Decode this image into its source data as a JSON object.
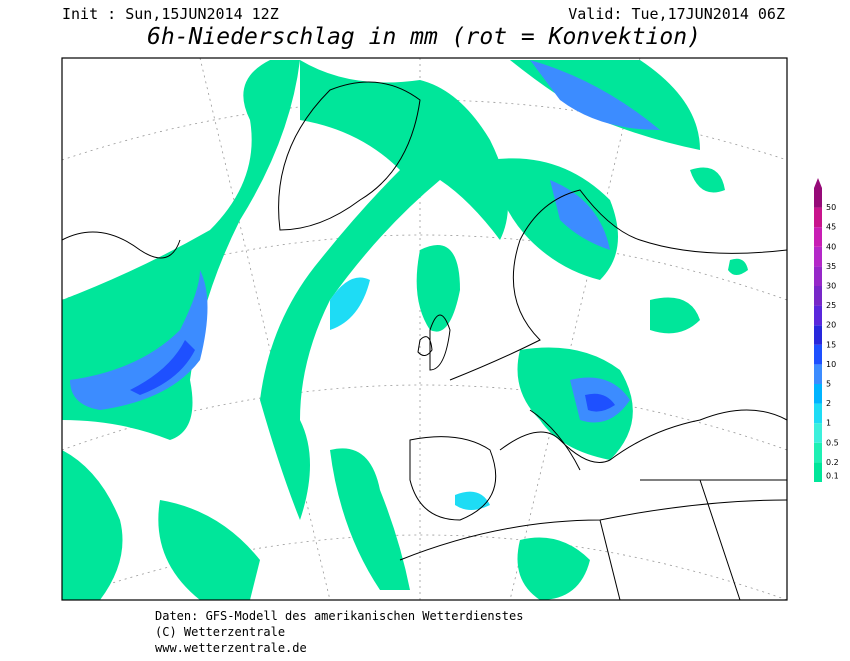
{
  "header": {
    "init": "Init : Sun,15JUN2014 12Z",
    "valid": "Valid: Tue,17JUN2014 06Z",
    "title": "6h-Niederschlag in mm (rot = Konvektion)"
  },
  "legend": {
    "levels": [
      {
        "label": "0.1",
        "color": "#00e69a"
      },
      {
        "label": "0.2",
        "color": "#1ef0b4"
      },
      {
        "label": "0.5",
        "color": "#3cf0dc"
      },
      {
        "label": "1",
        "color": "#1edcf5"
      },
      {
        "label": "2",
        "color": "#00b4ff"
      },
      {
        "label": "5",
        "color": "#3c8cff"
      },
      {
        "label": "10",
        "color": "#1e50ff"
      },
      {
        "label": "15",
        "color": "#2828dc"
      },
      {
        "label": "20",
        "color": "#5a28dc"
      },
      {
        "label": "25",
        "color": "#7828c8"
      },
      {
        "label": "30",
        "color": "#9628c8"
      },
      {
        "label": "35",
        "color": "#b428c8"
      },
      {
        "label": "40",
        "color": "#c81eb4"
      },
      {
        "label": "45",
        "color": "#c8148c"
      },
      {
        "label": "50",
        "color": "#960a78"
      }
    ]
  },
  "footer": {
    "lines": [
      "Daten: GFS-Modell des amerikanischen Wetterdienstes",
      "(C) Wetterzentrale",
      "www.wetterzentrale.de"
    ]
  }
}
